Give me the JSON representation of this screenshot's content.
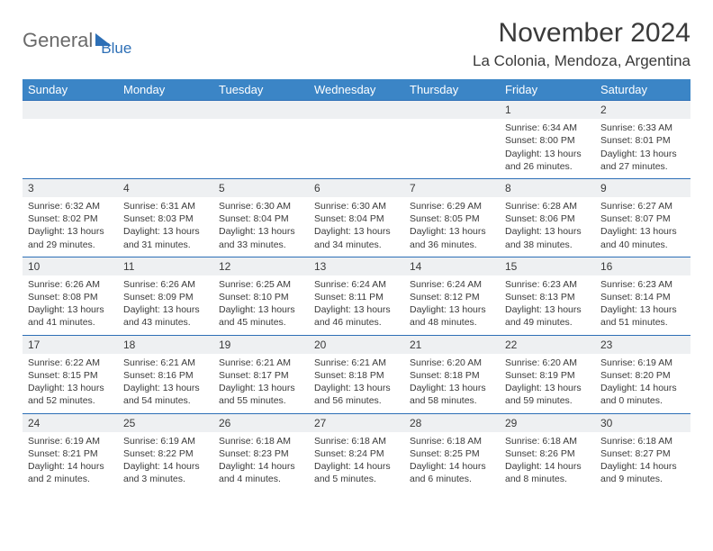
{
  "logo": {
    "part1": "General",
    "part2": "Blue"
  },
  "title": {
    "month": "November 2024",
    "location": "La Colonia, Mendoza, Argentina"
  },
  "colors": {
    "header_bg": "#3b85c6",
    "header_text": "#ffffff",
    "border": "#2d6fb6",
    "daynum_bg": "#eef0f2",
    "text": "#3a3a3a",
    "logo_gray": "#6a6a6a",
    "logo_blue": "#2d6fb6"
  },
  "weekdays": [
    "Sunday",
    "Monday",
    "Tuesday",
    "Wednesday",
    "Thursday",
    "Friday",
    "Saturday"
  ],
  "weeks": [
    [
      null,
      null,
      null,
      null,
      null,
      {
        "n": "1",
        "sr": "Sunrise: 6:34 AM",
        "ss": "Sunset: 8:00 PM",
        "dl": "Daylight: 13 hours and 26 minutes."
      },
      {
        "n": "2",
        "sr": "Sunrise: 6:33 AM",
        "ss": "Sunset: 8:01 PM",
        "dl": "Daylight: 13 hours and 27 minutes."
      }
    ],
    [
      {
        "n": "3",
        "sr": "Sunrise: 6:32 AM",
        "ss": "Sunset: 8:02 PM",
        "dl": "Daylight: 13 hours and 29 minutes."
      },
      {
        "n": "4",
        "sr": "Sunrise: 6:31 AM",
        "ss": "Sunset: 8:03 PM",
        "dl": "Daylight: 13 hours and 31 minutes."
      },
      {
        "n": "5",
        "sr": "Sunrise: 6:30 AM",
        "ss": "Sunset: 8:04 PM",
        "dl": "Daylight: 13 hours and 33 minutes."
      },
      {
        "n": "6",
        "sr": "Sunrise: 6:30 AM",
        "ss": "Sunset: 8:04 PM",
        "dl": "Daylight: 13 hours and 34 minutes."
      },
      {
        "n": "7",
        "sr": "Sunrise: 6:29 AM",
        "ss": "Sunset: 8:05 PM",
        "dl": "Daylight: 13 hours and 36 minutes."
      },
      {
        "n": "8",
        "sr": "Sunrise: 6:28 AM",
        "ss": "Sunset: 8:06 PM",
        "dl": "Daylight: 13 hours and 38 minutes."
      },
      {
        "n": "9",
        "sr": "Sunrise: 6:27 AM",
        "ss": "Sunset: 8:07 PM",
        "dl": "Daylight: 13 hours and 40 minutes."
      }
    ],
    [
      {
        "n": "10",
        "sr": "Sunrise: 6:26 AM",
        "ss": "Sunset: 8:08 PM",
        "dl": "Daylight: 13 hours and 41 minutes."
      },
      {
        "n": "11",
        "sr": "Sunrise: 6:26 AM",
        "ss": "Sunset: 8:09 PM",
        "dl": "Daylight: 13 hours and 43 minutes."
      },
      {
        "n": "12",
        "sr": "Sunrise: 6:25 AM",
        "ss": "Sunset: 8:10 PM",
        "dl": "Daylight: 13 hours and 45 minutes."
      },
      {
        "n": "13",
        "sr": "Sunrise: 6:24 AM",
        "ss": "Sunset: 8:11 PM",
        "dl": "Daylight: 13 hours and 46 minutes."
      },
      {
        "n": "14",
        "sr": "Sunrise: 6:24 AM",
        "ss": "Sunset: 8:12 PM",
        "dl": "Daylight: 13 hours and 48 minutes."
      },
      {
        "n": "15",
        "sr": "Sunrise: 6:23 AM",
        "ss": "Sunset: 8:13 PM",
        "dl": "Daylight: 13 hours and 49 minutes."
      },
      {
        "n": "16",
        "sr": "Sunrise: 6:23 AM",
        "ss": "Sunset: 8:14 PM",
        "dl": "Daylight: 13 hours and 51 minutes."
      }
    ],
    [
      {
        "n": "17",
        "sr": "Sunrise: 6:22 AM",
        "ss": "Sunset: 8:15 PM",
        "dl": "Daylight: 13 hours and 52 minutes."
      },
      {
        "n": "18",
        "sr": "Sunrise: 6:21 AM",
        "ss": "Sunset: 8:16 PM",
        "dl": "Daylight: 13 hours and 54 minutes."
      },
      {
        "n": "19",
        "sr": "Sunrise: 6:21 AM",
        "ss": "Sunset: 8:17 PM",
        "dl": "Daylight: 13 hours and 55 minutes."
      },
      {
        "n": "20",
        "sr": "Sunrise: 6:21 AM",
        "ss": "Sunset: 8:18 PM",
        "dl": "Daylight: 13 hours and 56 minutes."
      },
      {
        "n": "21",
        "sr": "Sunrise: 6:20 AM",
        "ss": "Sunset: 8:18 PM",
        "dl": "Daylight: 13 hours and 58 minutes."
      },
      {
        "n": "22",
        "sr": "Sunrise: 6:20 AM",
        "ss": "Sunset: 8:19 PM",
        "dl": "Daylight: 13 hours and 59 minutes."
      },
      {
        "n": "23",
        "sr": "Sunrise: 6:19 AM",
        "ss": "Sunset: 8:20 PM",
        "dl": "Daylight: 14 hours and 0 minutes."
      }
    ],
    [
      {
        "n": "24",
        "sr": "Sunrise: 6:19 AM",
        "ss": "Sunset: 8:21 PM",
        "dl": "Daylight: 14 hours and 2 minutes."
      },
      {
        "n": "25",
        "sr": "Sunrise: 6:19 AM",
        "ss": "Sunset: 8:22 PM",
        "dl": "Daylight: 14 hours and 3 minutes."
      },
      {
        "n": "26",
        "sr": "Sunrise: 6:18 AM",
        "ss": "Sunset: 8:23 PM",
        "dl": "Daylight: 14 hours and 4 minutes."
      },
      {
        "n": "27",
        "sr": "Sunrise: 6:18 AM",
        "ss": "Sunset: 8:24 PM",
        "dl": "Daylight: 14 hours and 5 minutes."
      },
      {
        "n": "28",
        "sr": "Sunrise: 6:18 AM",
        "ss": "Sunset: 8:25 PM",
        "dl": "Daylight: 14 hours and 6 minutes."
      },
      {
        "n": "29",
        "sr": "Sunrise: 6:18 AM",
        "ss": "Sunset: 8:26 PM",
        "dl": "Daylight: 14 hours and 8 minutes."
      },
      {
        "n": "30",
        "sr": "Sunrise: 6:18 AM",
        "ss": "Sunset: 8:27 PM",
        "dl": "Daylight: 14 hours and 9 minutes."
      }
    ]
  ]
}
